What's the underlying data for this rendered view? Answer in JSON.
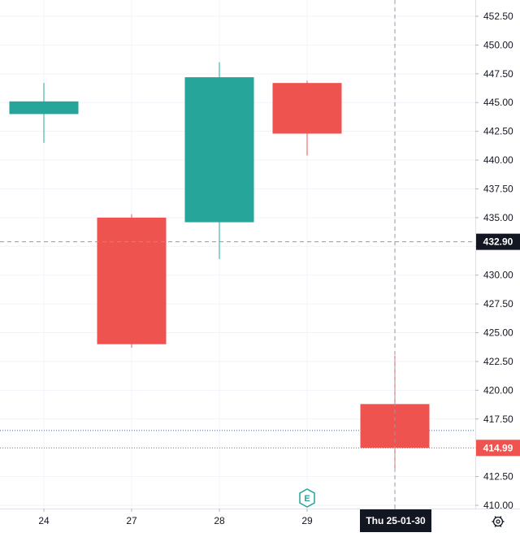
{
  "colors": {
    "up": "#26a69a",
    "down": "#ef5350",
    "grid": "#f0f3fa",
    "axis_text": "#131722",
    "crosshair": "#9598a1",
    "label_dark_bg": "#131722",
    "label_red_bg": "#ef5350",
    "blue_line": "#2962ff"
  },
  "chart_data": {
    "type": "candlestick",
    "title": "",
    "xlabel": "",
    "ylabel": "",
    "ylim": [
      410.0,
      453.0
    ],
    "y_ticks": [
      410.0,
      412.5,
      415.0,
      417.5,
      420.0,
      422.5,
      425.0,
      427.5,
      430.0,
      432.5,
      435.0,
      437.5,
      440.0,
      442.5,
      445.0,
      447.5,
      450.0,
      452.5
    ],
    "y_tick_labels": [
      "410.00",
      "412.50",
      "",
      "417.50",
      "420.00",
      "422.50",
      "425.00",
      "427.50",
      "430.00",
      "",
      "435.00",
      "437.50",
      "440.00",
      "442.50",
      "445.00",
      "447.50",
      "450.00",
      "452.50"
    ],
    "x_tick_labels": [
      "24",
      "27",
      "28",
      "29",
      "Thu 25-01-30"
    ],
    "candles": [
      {
        "label": "24",
        "open": 444.0,
        "high": 446.7,
        "low": 441.5,
        "close": 445.1
      },
      {
        "label": "27",
        "open": 435.0,
        "high": 435.3,
        "low": 423.7,
        "close": 424.0
      },
      {
        "label": "28",
        "open": 434.6,
        "high": 448.5,
        "low": 431.4,
        "close": 447.2
      },
      {
        "label": "29",
        "open": 446.7,
        "high": 446.9,
        "low": 440.4,
        "close": 442.3
      },
      {
        "label": "Thu 25-01-30",
        "open": 418.8,
        "high": 423.0,
        "low": 412.9,
        "close": 414.99
      }
    ],
    "crosshair": {
      "price": 432.9,
      "price_label": "432.90",
      "date_label": "Thu 25-01-30"
    },
    "last_price": {
      "price": 414.99,
      "label": "414.99"
    },
    "blue_dotted_level": 416.5,
    "earnings_marker": {
      "label": "E",
      "at": "29"
    }
  }
}
